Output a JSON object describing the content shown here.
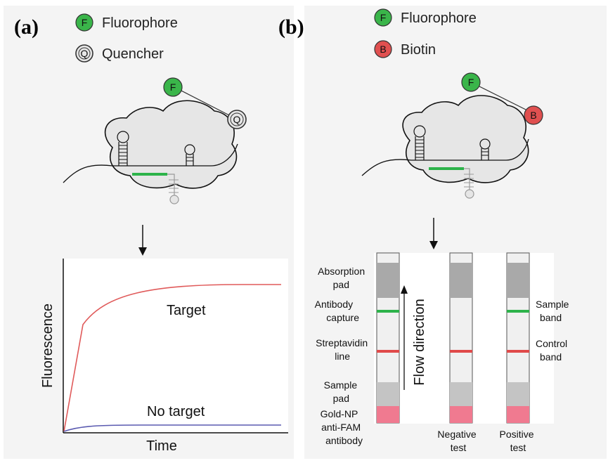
{
  "panel_a": {
    "label": "(a)",
    "legend": [
      {
        "letter": "F",
        "text": "Fluorophore",
        "color": "#3ab54a"
      },
      {
        "letter": "Q",
        "text": "Quencher",
        "color": "#e6e6e6"
      }
    ],
    "probe_letters": {
      "fluor": "F",
      "quench": "Q"
    },
    "plot": {
      "ylabel": "Fluorescence",
      "xlabel": "Time",
      "series": [
        {
          "label": "Target",
          "color": "#e05a5a"
        },
        {
          "label": "No target",
          "color": "#5a5ab0"
        }
      ]
    }
  },
  "panel_b": {
    "label": "(b)",
    "legend": [
      {
        "letter": "F",
        "text": "Fluorophore",
        "color": "#3ab54a"
      },
      {
        "letter": "B",
        "text": "Biotin",
        "color": "#e05050"
      }
    ],
    "probe_letters": {
      "fluor": "F",
      "biotin": "B"
    },
    "strip_labels_left": [
      [
        "Absorption",
        "pad"
      ],
      [
        "Antibody",
        "capture"
      ],
      [
        "Streptavidin",
        "line"
      ],
      [
        "Sample",
        "pad"
      ],
      [
        "Gold-NP",
        "anti-FAM",
        "antibody"
      ]
    ],
    "flow_label": "Flow direction",
    "strip_labels_right": [
      [
        "Sample",
        "band"
      ],
      [
        "Control",
        "band"
      ]
    ],
    "strip_captions": [
      [
        "Negative",
        "test"
      ],
      [
        "Positive",
        "test"
      ]
    ],
    "colors": {
      "green_band": "#2db34a",
      "red_band": "#e04a4a",
      "pink_pad": "#f07a90"
    }
  }
}
